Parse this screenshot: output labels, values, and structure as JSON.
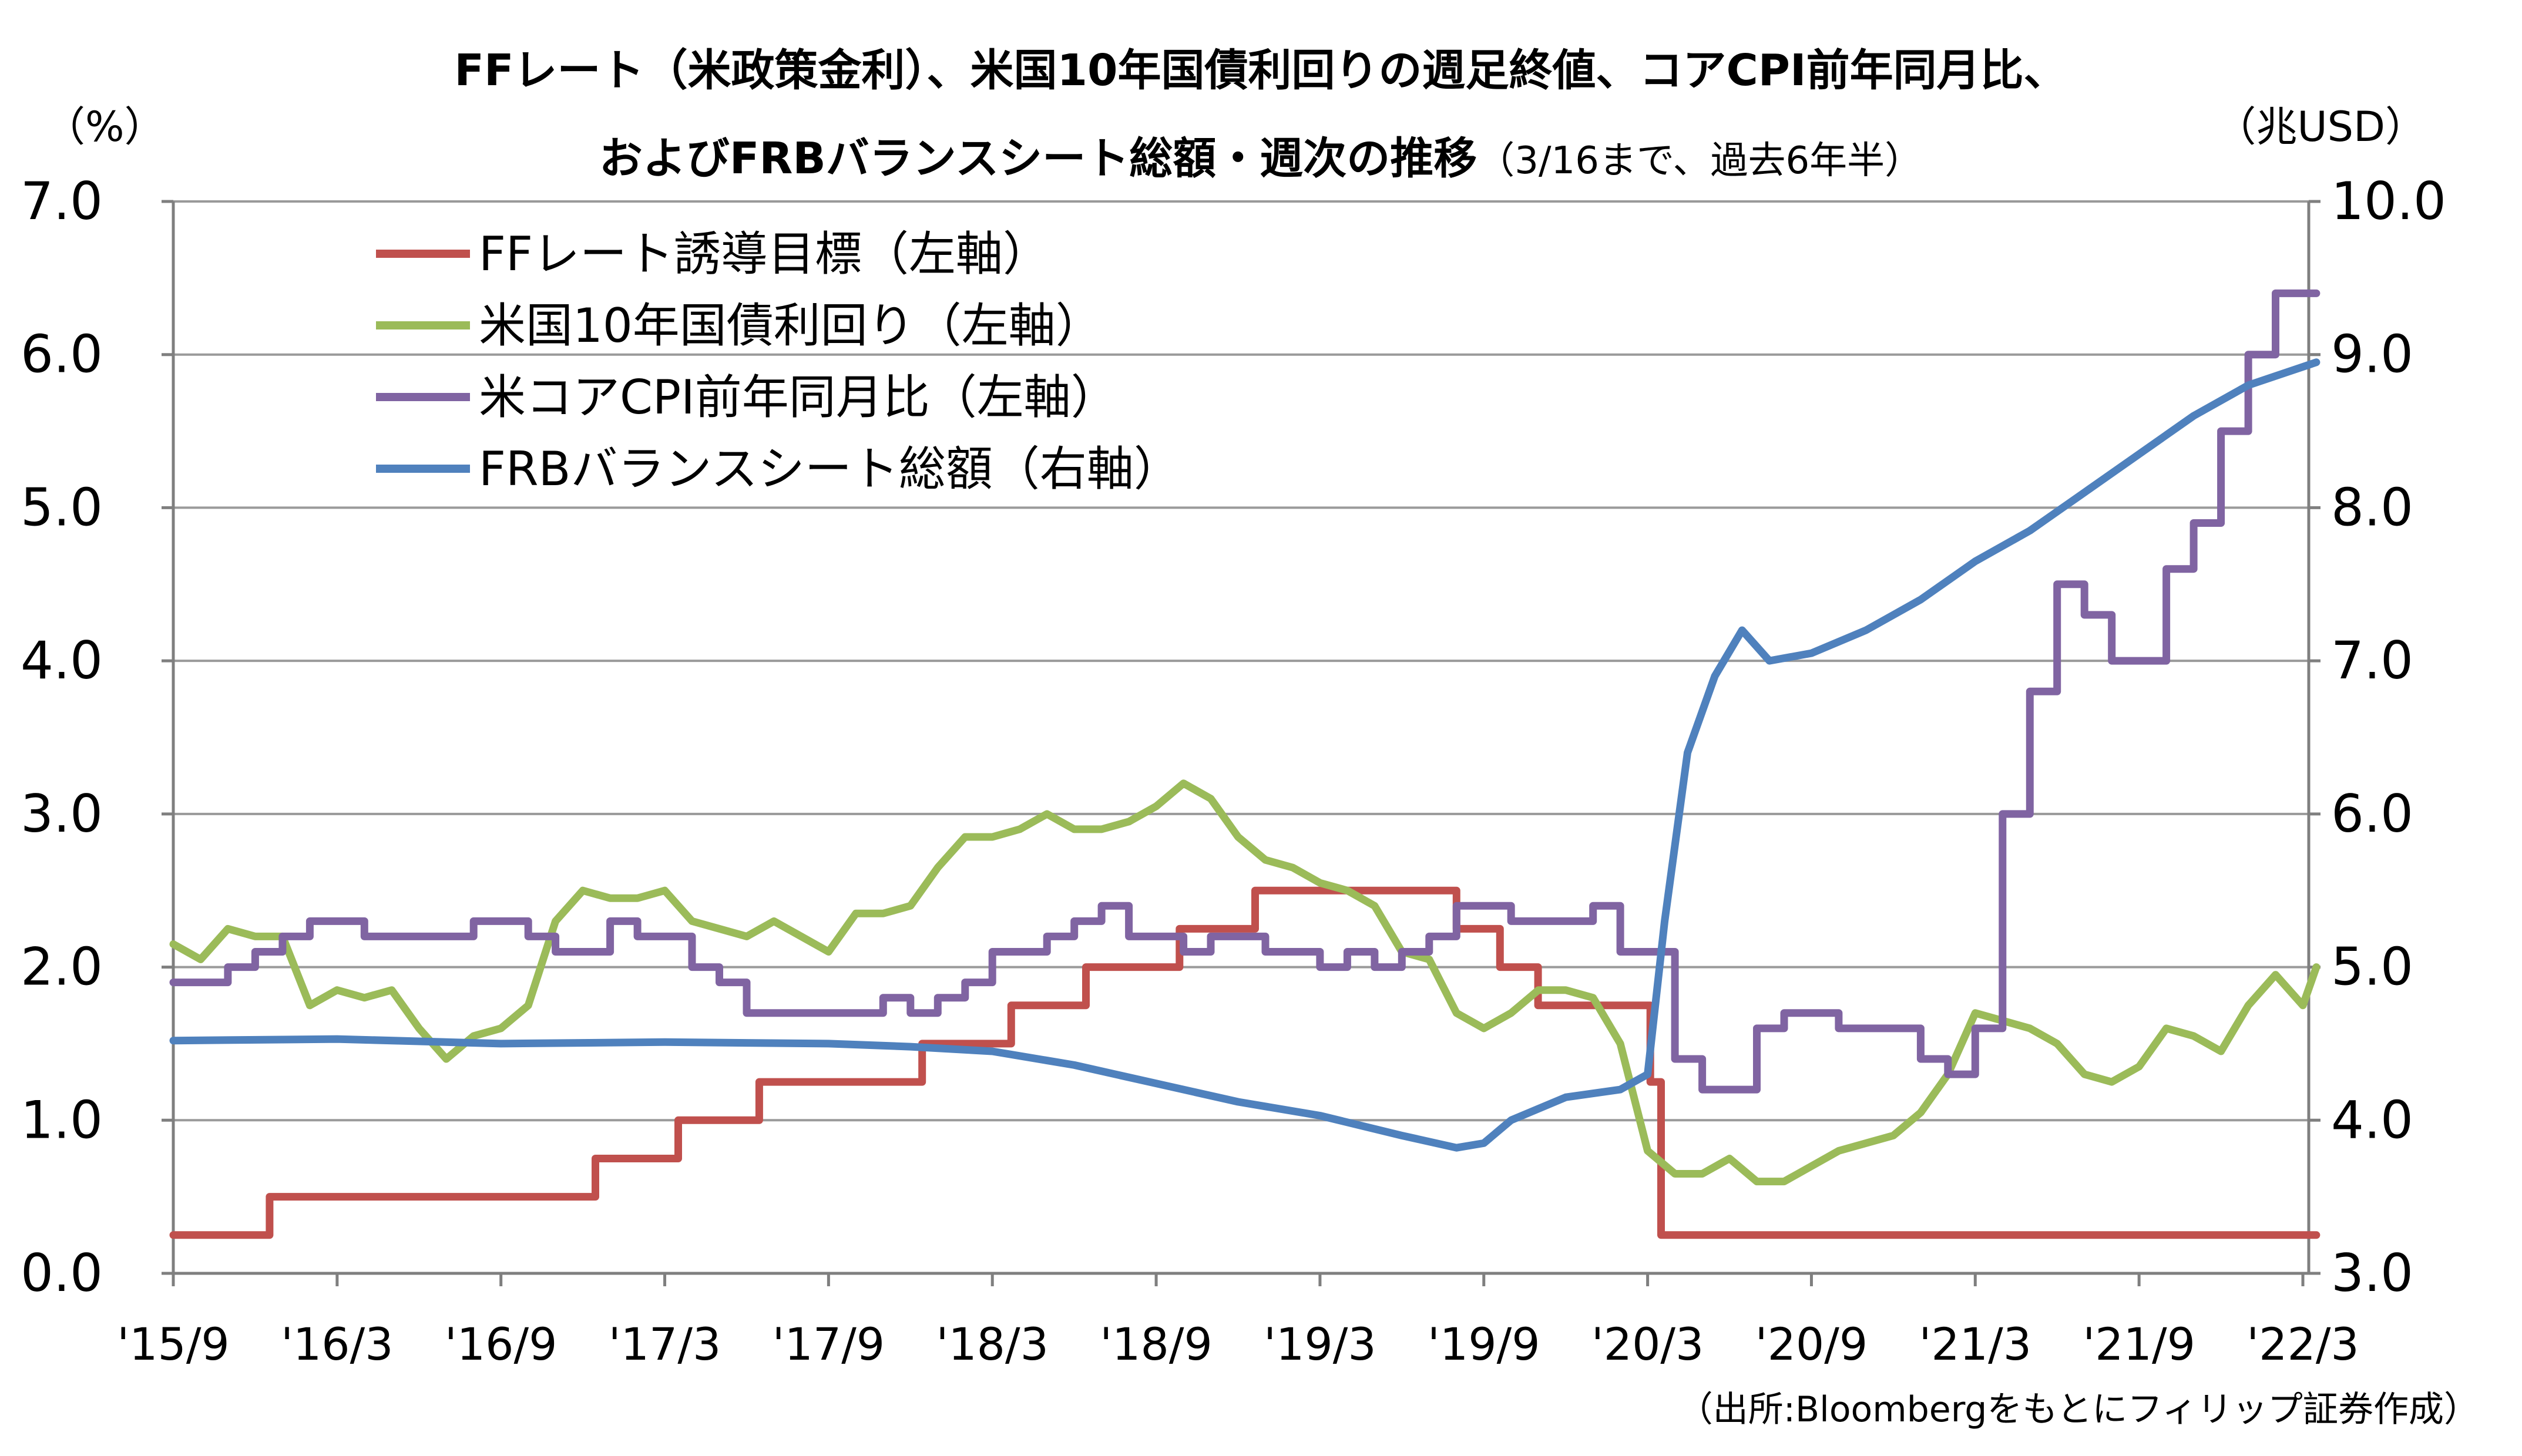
{
  "chart_data": {
    "type": "line",
    "title": "FFレート（米政策金利）、米国10年国債利回りの週足終値、コアCPI前年同月比、",
    "title_line2": "およびFRBバランスシート総額・週次の推移",
    "title_note": "（3/16まで、過去6年半）",
    "y_left_unit": "（%）",
    "y_right_unit": "（兆USD）",
    "source": "（出所:Bloombergをもとにフィリップ証券作成）",
    "y_left_range": [
      0,
      7
    ],
    "y_right_range": [
      3,
      10
    ],
    "y_left_ticks": [
      "0.0",
      "1.0",
      "2.0",
      "3.0",
      "4.0",
      "5.0",
      "6.0",
      "7.0"
    ],
    "y_right_ticks": [
      "3.0",
      "4.0",
      "5.0",
      "6.0",
      "7.0",
      "8.0",
      "9.0",
      "10.0"
    ],
    "x_range": [
      "2015-09",
      "2022-03"
    ],
    "x_ticks": [
      "'15/9",
      "'16/3",
      "'16/9",
      "'17/3",
      "'17/9",
      "'18/3",
      "'18/9",
      "'19/3",
      "'19/9",
      "'20/3",
      "'20/9",
      "'21/3",
      "'21/9",
      "'22/3"
    ],
    "grid": "horizontal",
    "legend_position": "top-left",
    "series": [
      {
        "name": "FFレート誘導目標（左軸）",
        "color": "#C0504D",
        "axis": "left",
        "step": true,
        "points": [
          [
            "2015-09-01",
            0.25
          ],
          [
            "2015-12-17",
            0.5
          ],
          [
            "2016-12-15",
            0.75
          ],
          [
            "2017-03-16",
            1.0
          ],
          [
            "2017-06-15",
            1.25
          ],
          [
            "2017-12-14",
            1.5
          ],
          [
            "2018-03-22",
            1.75
          ],
          [
            "2018-06-14",
            2.0
          ],
          [
            "2018-09-27",
            2.25
          ],
          [
            "2018-12-20",
            2.5
          ],
          [
            "2019-08-01",
            2.25
          ],
          [
            "2019-09-19",
            2.0
          ],
          [
            "2019-10-31",
            1.75
          ],
          [
            "2020-03-04",
            1.25
          ],
          [
            "2020-03-16",
            0.25
          ],
          [
            "2022-03-16",
            0.25
          ]
        ]
      },
      {
        "name": "米国10年国債利回り（左軸）",
        "color": "#9BBB59",
        "axis": "left",
        "step": false,
        "points": [
          [
            "2015-09-01",
            2.15
          ],
          [
            "2015-10-01",
            2.05
          ],
          [
            "2015-11-01",
            2.25
          ],
          [
            "2015-12-01",
            2.2
          ],
          [
            "2016-01-01",
            2.2
          ],
          [
            "2016-02-01",
            1.75
          ],
          [
            "2016-03-01",
            1.85
          ],
          [
            "2016-04-01",
            1.8
          ],
          [
            "2016-05-01",
            1.85
          ],
          [
            "2016-06-01",
            1.6
          ],
          [
            "2016-07-01",
            1.4
          ],
          [
            "2016-08-01",
            1.55
          ],
          [
            "2016-09-01",
            1.6
          ],
          [
            "2016-10-01",
            1.75
          ],
          [
            "2016-11-01",
            2.3
          ],
          [
            "2016-12-01",
            2.5
          ],
          [
            "2017-01-01",
            2.45
          ],
          [
            "2017-02-01",
            2.45
          ],
          [
            "2017-03-01",
            2.5
          ],
          [
            "2017-04-01",
            2.3
          ],
          [
            "2017-05-01",
            2.25
          ],
          [
            "2017-06-01",
            2.2
          ],
          [
            "2017-07-01",
            2.3
          ],
          [
            "2017-08-01",
            2.2
          ],
          [
            "2017-09-01",
            2.1
          ],
          [
            "2017-10-01",
            2.35
          ],
          [
            "2017-11-01",
            2.35
          ],
          [
            "2017-12-01",
            2.4
          ],
          [
            "2018-01-01",
            2.65
          ],
          [
            "2018-02-01",
            2.85
          ],
          [
            "2018-03-01",
            2.85
          ],
          [
            "2018-04-01",
            2.9
          ],
          [
            "2018-05-01",
            3.0
          ],
          [
            "2018-06-01",
            2.9
          ],
          [
            "2018-07-01",
            2.9
          ],
          [
            "2018-08-01",
            2.95
          ],
          [
            "2018-09-01",
            3.05
          ],
          [
            "2018-10-01",
            3.2
          ],
          [
            "2018-11-01",
            3.1
          ],
          [
            "2018-12-01",
            2.85
          ],
          [
            "2019-01-01",
            2.7
          ],
          [
            "2019-02-01",
            2.65
          ],
          [
            "2019-03-01",
            2.55
          ],
          [
            "2019-04-01",
            2.5
          ],
          [
            "2019-05-01",
            2.4
          ],
          [
            "2019-06-01",
            2.1
          ],
          [
            "2019-07-01",
            2.05
          ],
          [
            "2019-08-01",
            1.7
          ],
          [
            "2019-09-01",
            1.6
          ],
          [
            "2019-10-01",
            1.7
          ],
          [
            "2019-11-01",
            1.85
          ],
          [
            "2019-12-01",
            1.85
          ],
          [
            "2020-01-01",
            1.8
          ],
          [
            "2020-02-01",
            1.5
          ],
          [
            "2020-03-01",
            0.8
          ],
          [
            "2020-04-01",
            0.65
          ],
          [
            "2020-05-01",
            0.65
          ],
          [
            "2020-06-01",
            0.75
          ],
          [
            "2020-07-01",
            0.6
          ],
          [
            "2020-08-01",
            0.6
          ],
          [
            "2020-09-01",
            0.7
          ],
          [
            "2020-10-01",
            0.8
          ],
          [
            "2020-11-01",
            0.85
          ],
          [
            "2020-12-01",
            0.9
          ],
          [
            "2021-01-01",
            1.05
          ],
          [
            "2021-02-01",
            1.3
          ],
          [
            "2021-03-01",
            1.7
          ],
          [
            "2021-04-01",
            1.65
          ],
          [
            "2021-05-01",
            1.6
          ],
          [
            "2021-06-01",
            1.5
          ],
          [
            "2021-07-01",
            1.3
          ],
          [
            "2021-08-01",
            1.25
          ],
          [
            "2021-09-01",
            1.35
          ],
          [
            "2021-10-01",
            1.6
          ],
          [
            "2021-11-01",
            1.55
          ],
          [
            "2021-12-01",
            1.45
          ],
          [
            "2022-01-01",
            1.75
          ],
          [
            "2022-02-01",
            1.95
          ],
          [
            "2022-03-01",
            1.75
          ],
          [
            "2022-03-16",
            2.0
          ]
        ]
      },
      {
        "name": "米コアCPI前年同月比（左軸）",
        "color": "#8064A2",
        "axis": "left",
        "step": true,
        "points": [
          [
            "2015-09-01",
            1.9
          ],
          [
            "2015-11-01",
            2.0
          ],
          [
            "2015-12-01",
            2.1
          ],
          [
            "2016-01-01",
            2.2
          ],
          [
            "2016-02-01",
            2.3
          ],
          [
            "2016-04-01",
            2.2
          ],
          [
            "2016-08-01",
            2.3
          ],
          [
            "2016-10-01",
            2.2
          ],
          [
            "2016-11-01",
            2.1
          ],
          [
            "2017-01-01",
            2.3
          ],
          [
            "2017-02-01",
            2.2
          ],
          [
            "2017-04-01",
            2.0
          ],
          [
            "2017-05-01",
            1.9
          ],
          [
            "2017-06-01",
            1.7
          ],
          [
            "2017-11-01",
            1.8
          ],
          [
            "2017-12-01",
            1.7
          ],
          [
            "2018-01-01",
            1.8
          ],
          [
            "2018-02-01",
            1.9
          ],
          [
            "2018-03-01",
            2.1
          ],
          [
            "2018-05-01",
            2.2
          ],
          [
            "2018-06-01",
            2.3
          ],
          [
            "2018-07-01",
            2.4
          ],
          [
            "2018-08-01",
            2.2
          ],
          [
            "2018-10-01",
            2.1
          ],
          [
            "2018-11-01",
            2.2
          ],
          [
            "2019-01-01",
            2.1
          ],
          [
            "2019-03-01",
            2.0
          ],
          [
            "2019-04-01",
            2.1
          ],
          [
            "2019-05-01",
            2.0
          ],
          [
            "2019-06-01",
            2.1
          ],
          [
            "2019-07-01",
            2.2
          ],
          [
            "2019-08-01",
            2.4
          ],
          [
            "2019-10-01",
            2.3
          ],
          [
            "2020-01-01",
            2.4
          ],
          [
            "2020-02-01",
            2.1
          ],
          [
            "2020-03-01",
            2.1
          ],
          [
            "2020-04-01",
            1.4
          ],
          [
            "2020-05-01",
            1.2
          ],
          [
            "2020-07-01",
            1.6
          ],
          [
            "2020-08-01",
            1.7
          ],
          [
            "2020-10-01",
            1.6
          ],
          [
            "2021-01-01",
            1.4
          ],
          [
            "2021-02-01",
            1.3
          ],
          [
            "2021-03-01",
            1.6
          ],
          [
            "2021-04-01",
            3.0
          ],
          [
            "2021-05-01",
            3.8
          ],
          [
            "2021-06-01",
            4.5
          ],
          [
            "2021-07-01",
            4.3
          ],
          [
            "2021-08-01",
            4.0
          ],
          [
            "2021-09-01",
            4.0
          ],
          [
            "2021-10-01",
            4.6
          ],
          [
            "2021-11-01",
            4.9
          ],
          [
            "2021-12-01",
            5.5
          ],
          [
            "2022-01-01",
            6.0
          ],
          [
            "2022-02-01",
            6.4
          ],
          [
            "2022-03-16",
            6.4
          ]
        ]
      },
      {
        "name": "FRBバランスシート総額（右軸）",
        "color": "#4F81BD",
        "axis": "right",
        "step": false,
        "points": [
          [
            "2015-09-01",
            4.52
          ],
          [
            "2016-03-01",
            4.53
          ],
          [
            "2016-09-01",
            4.5
          ],
          [
            "2017-03-01",
            4.51
          ],
          [
            "2017-09-01",
            4.5
          ],
          [
            "2017-12-01",
            4.48
          ],
          [
            "2018-03-01",
            4.45
          ],
          [
            "2018-06-01",
            4.36
          ],
          [
            "2018-09-01",
            4.24
          ],
          [
            "2018-12-01",
            4.12
          ],
          [
            "2019-03-01",
            4.03
          ],
          [
            "2019-06-01",
            3.9
          ],
          [
            "2019-08-01",
            3.82
          ],
          [
            "2019-09-01",
            3.85
          ],
          [
            "2019-10-01",
            4.0
          ],
          [
            "2019-12-01",
            4.15
          ],
          [
            "2020-02-01",
            4.2
          ],
          [
            "2020-03-01",
            4.3
          ],
          [
            "2020-03-20",
            5.3
          ],
          [
            "2020-04-15",
            6.4
          ],
          [
            "2020-05-15",
            6.9
          ],
          [
            "2020-06-15",
            7.2
          ],
          [
            "2020-07-15",
            7.0
          ],
          [
            "2020-09-01",
            7.05
          ],
          [
            "2020-11-01",
            7.2
          ],
          [
            "2021-01-01",
            7.4
          ],
          [
            "2021-03-01",
            7.65
          ],
          [
            "2021-05-01",
            7.85
          ],
          [
            "2021-07-01",
            8.1
          ],
          [
            "2021-09-01",
            8.35
          ],
          [
            "2021-11-01",
            8.6
          ],
          [
            "2022-01-01",
            8.8
          ],
          [
            "2022-03-16",
            8.95
          ]
        ]
      }
    ]
  }
}
